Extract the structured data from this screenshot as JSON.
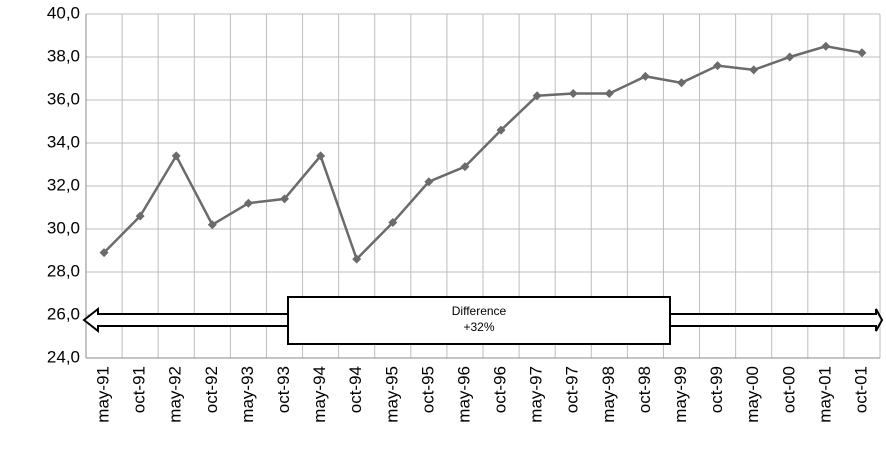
{
  "chart_data": {
    "type": "line",
    "categories": [
      "may-91",
      "oct-91",
      "may-92",
      "oct-92",
      "may-93",
      "oct-93",
      "may-94",
      "oct-94",
      "may-95",
      "oct-95",
      "may-96",
      "oct-96",
      "may-97",
      "oct-97",
      "may-98",
      "oct-98",
      "may-99",
      "oct-99",
      "may-00",
      "oct-00",
      "may-01",
      "oct-01"
    ],
    "values": [
      28.9,
      30.6,
      33.4,
      30.2,
      31.2,
      31.4,
      33.4,
      28.6,
      30.3,
      32.2,
      32.9,
      34.6,
      36.2,
      36.3,
      36.3,
      37.1,
      36.8,
      37.6,
      37.4,
      38.0,
      38.5,
      38.2
    ],
    "color": "#6b6b6b",
    "ylim": [
      24,
      40
    ],
    "yticks": [
      {
        "value": 24,
        "label": "24,0"
      },
      {
        "value": 26,
        "label": "26,0"
      },
      {
        "value": 28,
        "label": "28,0"
      },
      {
        "value": 30,
        "label": "30,0"
      },
      {
        "value": 32,
        "label": "32,0"
      },
      {
        "value": 34,
        "label": "34,0"
      },
      {
        "value": 36,
        "label": "36,0"
      },
      {
        "value": 38,
        "label": "38,0"
      },
      {
        "value": 40,
        "label": "40,0"
      }
    ],
    "grid": true,
    "annotation": [
      "Difference",
      "+32%"
    ]
  }
}
